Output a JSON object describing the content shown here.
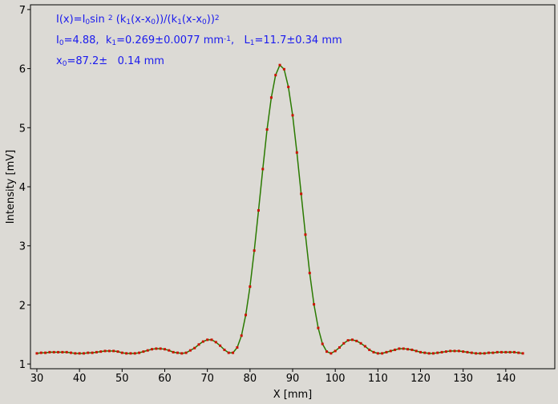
{
  "chart_data": {
    "type": "scatter",
    "xlabel": "X [mm]",
    "ylabel": "Intensity [mV]",
    "annotation_lines": [
      [
        {
          "t": "I(x)=I"
        },
        {
          "t": "0",
          "s": "sub"
        },
        {
          "t": "sin "
        },
        {
          "t": "2",
          "s": "sup"
        },
        {
          "t": " (k"
        },
        {
          "t": "1",
          "s": "sub"
        },
        {
          "t": "(x-x"
        },
        {
          "t": "0",
          "s": "sub"
        },
        {
          "t": "))/(k"
        },
        {
          "t": "1",
          "s": "sub"
        },
        {
          "t": "(x-x"
        },
        {
          "t": "0",
          "s": "sub"
        },
        {
          "t": "))"
        },
        {
          "t": "2",
          "s": "sup"
        }
      ],
      [
        {
          "t": "I"
        },
        {
          "t": "0",
          "s": "sub"
        },
        {
          "t": "=4.88,  k"
        },
        {
          "t": "1",
          "s": "sub"
        },
        {
          "t": "=0.269±0.0077 mm"
        },
        {
          "t": "-1",
          "s": "sup"
        },
        {
          "t": ",   L"
        },
        {
          "t": "1",
          "s": "sub"
        },
        {
          "t": "=11.7±0.34 mm"
        }
      ],
      [
        {
          "t": "x"
        },
        {
          "t": "0",
          "s": "sub"
        },
        {
          "t": "=87.2±   0.14 mm"
        }
      ]
    ],
    "annotation_color": "#1a1aee",
    "x": [
      30,
      31,
      32,
      33,
      34,
      35,
      36,
      37,
      38,
      39,
      40,
      41,
      42,
      43,
      44,
      45,
      46,
      47,
      48,
      49,
      50,
      51,
      52,
      53,
      54,
      55,
      56,
      57,
      58,
      59,
      60,
      61,
      62,
      63,
      64,
      65,
      66,
      67,
      68,
      69,
      70,
      71,
      72,
      73,
      74,
      75,
      76,
      77,
      78,
      79,
      80,
      81,
      82,
      83,
      84,
      85,
      86,
      87,
      88,
      89,
      90,
      91,
      92,
      93,
      94,
      95,
      96,
      97,
      98,
      99,
      100,
      101,
      102,
      103,
      104,
      105,
      106,
      107,
      108,
      109,
      110,
      111,
      112,
      113,
      114,
      115,
      116,
      117,
      118,
      119,
      120,
      121,
      122,
      123,
      124,
      125,
      126,
      127,
      128,
      129,
      130,
      131,
      132,
      133,
      134,
      135,
      136,
      137,
      138,
      139,
      140,
      141,
      142,
      143,
      144
    ],
    "series": [
      {
        "color": "#cc1100",
        "line_color": "#2a7a00",
        "values": [
          1.18,
          1.19,
          1.19,
          1.2,
          1.2,
          1.2,
          1.2,
          1.2,
          1.19,
          1.18,
          1.18,
          1.18,
          1.19,
          1.19,
          1.2,
          1.21,
          1.22,
          1.22,
          1.22,
          1.21,
          1.19,
          1.18,
          1.18,
          1.18,
          1.19,
          1.21,
          1.23,
          1.25,
          1.26,
          1.26,
          1.25,
          1.23,
          1.2,
          1.19,
          1.18,
          1.19,
          1.23,
          1.27,
          1.33,
          1.38,
          1.41,
          1.41,
          1.37,
          1.31,
          1.24,
          1.19,
          1.19,
          1.28,
          1.48,
          1.83,
          2.31,
          2.92,
          3.6,
          4.3,
          4.97,
          5.51,
          5.89,
          6.06,
          5.99,
          5.69,
          5.21,
          4.58,
          3.88,
          3.19,
          2.54,
          2.01,
          1.61,
          1.34,
          1.21,
          1.18,
          1.22,
          1.28,
          1.35,
          1.4,
          1.41,
          1.39,
          1.35,
          1.3,
          1.24,
          1.2,
          1.18,
          1.18,
          1.2,
          1.22,
          1.24,
          1.26,
          1.26,
          1.25,
          1.24,
          1.22,
          1.2,
          1.19,
          1.18,
          1.18,
          1.19,
          1.2,
          1.21,
          1.22,
          1.22,
          1.22,
          1.21,
          1.2,
          1.19,
          1.18,
          1.18,
          1.18,
          1.19,
          1.19,
          1.2,
          1.2,
          1.2,
          1.2,
          1.2,
          1.19,
          1.18
        ]
      }
    ],
    "xlim": [
      28.5,
      151.5
    ],
    "ylim": [
      0.92,
      7.08
    ],
    "xticks": [
      30,
      40,
      50,
      60,
      70,
      80,
      90,
      100,
      110,
      120,
      130,
      140
    ],
    "yticks": [
      1,
      2,
      3,
      4,
      5,
      6,
      7
    ],
    "grid": false
  }
}
